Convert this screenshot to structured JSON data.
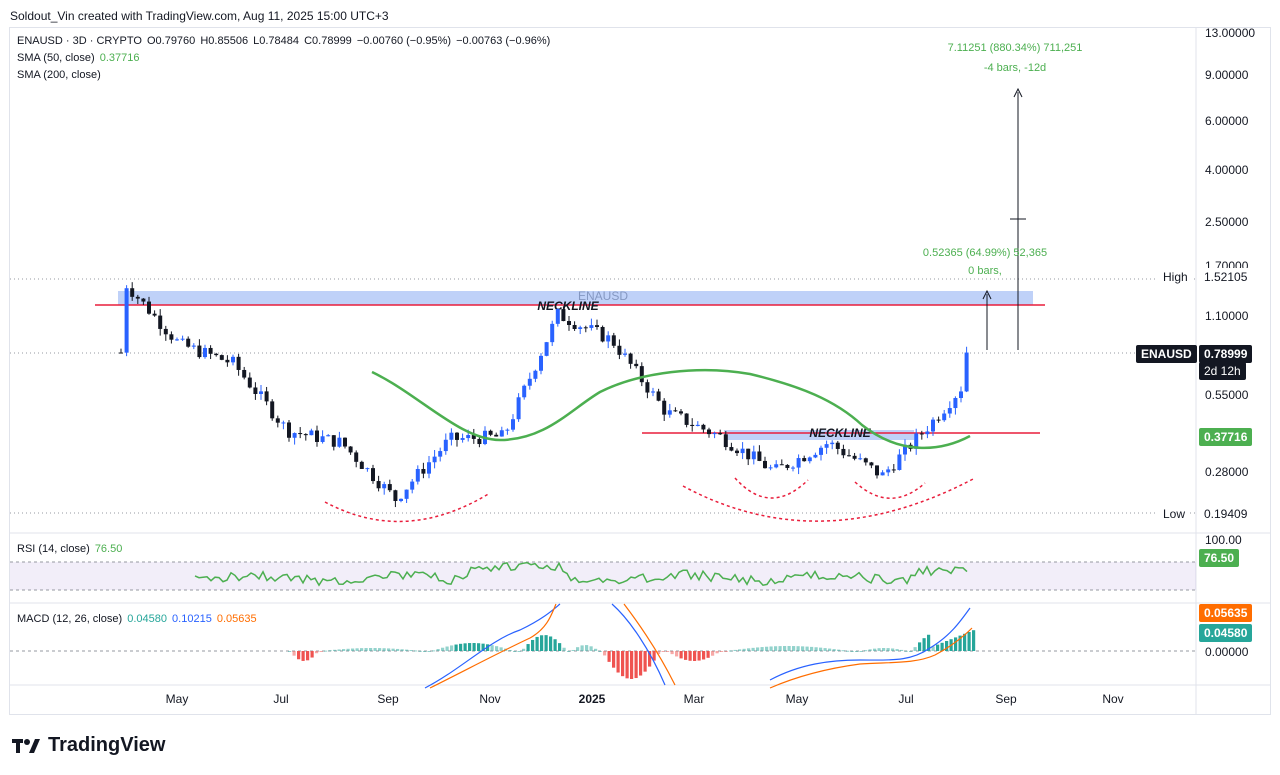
{
  "header": {
    "text": "Soldout_Vin created with TradingView.com, Aug 11, 2025 15:00 UTC+3"
  },
  "legend": {
    "symbol_line": "ENAUSD · 3D · CRYPTO",
    "open": "O0.79760",
    "high": "H0.85506",
    "low": "L0.78484",
    "close": "C0.78999",
    "change": "−0.00760 (−0.95%)",
    "change2": "−0.00763 (−0.96%)",
    "sma50_label": "SMA (50, close)",
    "sma50_value": "0.37716",
    "sma200_label": "SMA (200, close)"
  },
  "watermark": "ENAUSD",
  "price_axis": {
    "ticks": [
      "13.00000",
      "9.00000",
      "6.00000",
      "4.00000",
      "2.50000",
      "1.70000",
      "1.10000",
      "0.55000",
      "0.28000"
    ],
    "high_label": "High",
    "high_value": "1.52105",
    "low_label": "Low",
    "low_value": "0.19409",
    "symbol_badge": "ENAUSD",
    "last_price": "0.78999",
    "countdown": "2d 12h",
    "sma_badge": "0.37716"
  },
  "time_axis": {
    "labels": [
      "May",
      "Jul",
      "Sep",
      "Nov",
      "2025",
      "Mar",
      "May",
      "Jul",
      "Sep",
      "Nov"
    ]
  },
  "annotations": {
    "neckline_1": "NECKLINE",
    "neckline_2": "NECKLINE",
    "measure_big_1": "7.11251 (880.34%) 711,251",
    "measure_big_2": "-4 bars, -12d",
    "measure_small_1": "0.52365 (64.99%) 52,365",
    "measure_small_2": "0 bars,"
  },
  "rsi": {
    "label": "RSI (14, close)",
    "value": "76.50",
    "axis_top": "100.00",
    "badge": "76.50"
  },
  "macd": {
    "label": "MACD (12, 26, close)",
    "v1": "0.04580",
    "v2": "0.10215",
    "v3": "0.05635",
    "badge_orange": "0.05635",
    "badge_teal": "0.04580",
    "axis_zero": "0.00000"
  },
  "footer": {
    "brand": "TradingView"
  },
  "colors": {
    "up": "#2962ff",
    "down": "#131722",
    "sma50": "#4caf50",
    "neckline": "#e91e3c",
    "zone": "#a9c1f5",
    "rsi_line": "#4caf50",
    "macd_line": "#2962ff",
    "signal_line": "#ff6d00",
    "hist_pos": "#26a69a",
    "hist_neg": "#ef5350"
  },
  "chart_data": [
    {
      "type": "candlestick",
      "title": "ENAUSD · 3D · CRYPTO",
      "yscale": "log",
      "xlabel": "",
      "ylabel": "",
      "x_labels": [
        "May",
        "Jul",
        "Sep",
        "Nov",
        "2025",
        "Mar",
        "May",
        "Jul",
        "Sep",
        "Nov"
      ],
      "close_path": [
        {
          "x": "Apr 2024",
          "y": 0.75
        },
        {
          "x": "Apr 2024",
          "y": 1.45
        },
        {
          "x": "May 2024",
          "y": 0.85
        },
        {
          "x": "Jun 2024",
          "y": 0.72
        },
        {
          "x": "Jul 2024",
          "y": 0.4
        },
        {
          "x": "Aug 2024",
          "y": 0.36
        },
        {
          "x": "Sep 2024",
          "y": 0.22
        },
        {
          "x": "Oct 2024",
          "y": 0.37
        },
        {
          "x": "Nov 2024",
          "y": 0.38
        },
        {
          "x": "Dec 2024",
          "y": 1.1
        },
        {
          "x": "Jan 2025",
          "y": 0.88
        },
        {
          "x": "Feb 2025",
          "y": 0.47
        },
        {
          "x": "Mar 2025",
          "y": 0.38
        },
        {
          "x": "Apr 2025",
          "y": 0.28
        },
        {
          "x": "May 2025",
          "y": 0.36
        },
        {
          "x": "Jun 2025",
          "y": 0.27
        },
        {
          "x": "Jul 2025",
          "y": 0.45
        },
        {
          "x": "Aug 2025",
          "y": 0.79
        }
      ],
      "series": [
        {
          "name": "SMA (50, close)",
          "last": 0.37716
        }
      ],
      "levels": {
        "high": 1.52105,
        "low": 0.19409,
        "last": 0.78999
      }
    },
    {
      "type": "line",
      "title": "RSI (14, close)",
      "series": [
        {
          "name": "RSI (14, close)",
          "last": 76.5
        }
      ]
    },
    {
      "type": "line",
      "title": "MACD (12, 26, close)",
      "series": [
        {
          "name": "MACD",
          "last": 0.10215
        },
        {
          "name": "Signal",
          "last": 0.05635
        },
        {
          "name": "Histogram",
          "last": 0.0458
        }
      ]
    }
  ]
}
